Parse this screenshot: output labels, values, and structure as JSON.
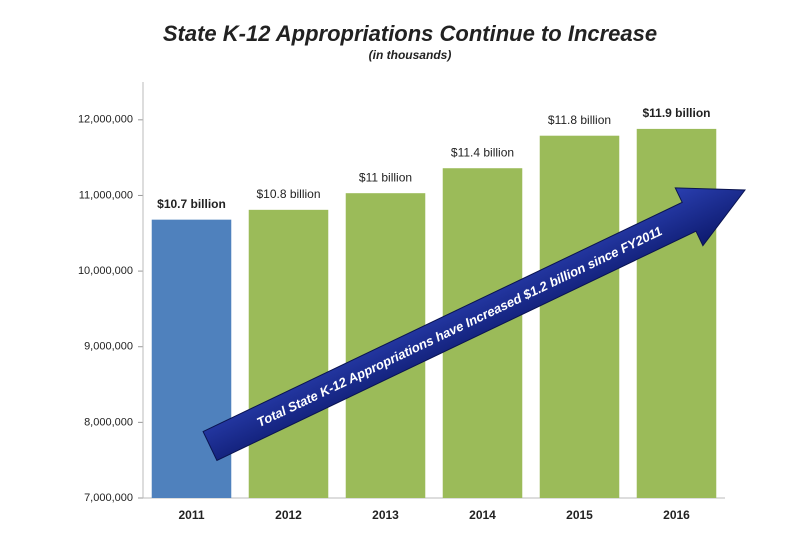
{
  "chart_data": {
    "type": "bar",
    "title": "State K-12 Appropriations Continue to Increase",
    "subtitle": "(in thousands)",
    "categories": [
      "2011",
      "2012",
      "2013",
      "2014",
      "2015",
      "2016"
    ],
    "values": [
      10680000,
      10810000,
      11030000,
      11360000,
      11790000,
      11880000
    ],
    "value_labels": [
      "$10.7 billion",
      "$10.8 billion",
      "$11 billion",
      "$11.4 billion",
      "$11.8 billion",
      "$11.9 billion"
    ],
    "value_label_bold": [
      true,
      false,
      false,
      false,
      false,
      true
    ],
    "colors": [
      "#4f81bd",
      "#9bbb59",
      "#9bbb59",
      "#9bbb59",
      "#9bbb59",
      "#9bbb59"
    ],
    "ylim": [
      7000000,
      12500000
    ],
    "yticks": [
      {
        "value": 7000000,
        "label": "7,000,000"
      },
      {
        "value": 8000000,
        "label": "8,000,000"
      },
      {
        "value": 9000000,
        "label": "9,000,000"
      },
      {
        "value": 10000000,
        "label": "10,000,000"
      },
      {
        "value": 11000000,
        "label": "11,000,000"
      },
      {
        "value": 12000000,
        "label": "12,000,000"
      }
    ],
    "annotation": "Total State K-12 Appropriations have Increased $1.2 billion since FY2011"
  }
}
